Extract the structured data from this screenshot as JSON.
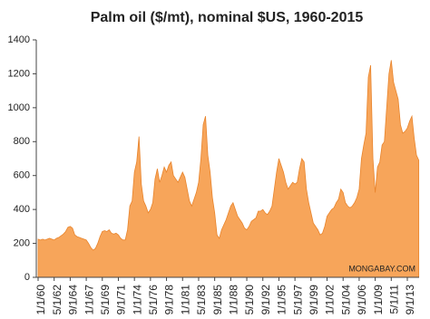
{
  "chart_data": {
    "type": "area",
    "title": "Palm oil ($/mt), nominal $US, 1960-2015",
    "annotation": "MONGABAY.COM",
    "color": "#f7a55a",
    "line_color": "#e8842c",
    "ylim": [
      0,
      1400
    ],
    "yticks": [
      0,
      200,
      400,
      600,
      800,
      1000,
      1200,
      1400
    ],
    "grid": false,
    "categories": [
      "1/1/60",
      null,
      null,
      null,
      null,
      null,
      null,
      "5/1/62",
      null,
      null,
      null,
      null,
      null,
      null,
      "9/1/64",
      null,
      null,
      null,
      null,
      null,
      null,
      "1/1/67",
      null,
      null,
      null,
      null,
      null,
      null,
      "5/1/69",
      null,
      null,
      null,
      null,
      null,
      null,
      "9/1/71",
      null,
      null,
      null,
      null,
      null,
      null,
      "1/1/74",
      null,
      null,
      null,
      null,
      null,
      null,
      "5/1/76",
      null,
      null,
      null,
      null,
      null,
      null,
      "9/1/78",
      null,
      null,
      null,
      null,
      null,
      null,
      "1/1/81",
      null,
      null,
      null,
      null,
      null,
      null,
      "5/1/83",
      null,
      null,
      null,
      null,
      null,
      null,
      "9/1/85",
      null,
      null,
      null,
      null,
      null,
      null,
      "1/1/88",
      null,
      null,
      null,
      null,
      null,
      null,
      "5/1/90",
      null,
      null,
      null,
      null,
      null,
      null,
      "9/1/92",
      null,
      null,
      null,
      null,
      null,
      null,
      "1/1/95",
      null,
      null,
      null,
      null,
      null,
      null,
      "5/1/97",
      null,
      null,
      null,
      null,
      null,
      null,
      "9/1/99",
      null,
      null,
      null,
      null,
      null,
      null,
      "1/1/02",
      null,
      null,
      null,
      null,
      null,
      null,
      "5/1/04",
      null,
      null,
      null,
      null,
      null,
      null,
      "9/1/06",
      null,
      null,
      null,
      null,
      null,
      null,
      "1/1/09",
      null,
      null,
      null,
      null,
      null,
      null,
      "5/1/11",
      null,
      null,
      null,
      null,
      null,
      null,
      "9/1/13",
      null,
      null,
      null,
      null,
      null
    ],
    "values": [
      225,
      220,
      225,
      220,
      225,
      230,
      225,
      220,
      230,
      235,
      245,
      255,
      270,
      295,
      300,
      290,
      250,
      240,
      235,
      230,
      225,
      220,
      200,
      175,
      160,
      170,
      200,
      240,
      270,
      275,
      270,
      280,
      260,
      255,
      260,
      250,
      230,
      220,
      220,
      280,
      420,
      450,
      620,
      680,
      830,
      550,
      450,
      420,
      380,
      400,
      440,
      580,
      640,
      560,
      600,
      650,
      620,
      660,
      680,
      600,
      580,
      560,
      590,
      620,
      590,
      520,
      450,
      420,
      460,
      500,
      560,
      700,
      900,
      950,
      720,
      620,
      470,
      380,
      250,
      230,
      280,
      310,
      340,
      380,
      420,
      440,
      400,
      360,
      340,
      320,
      290,
      280,
      300,
      330,
      340,
      350,
      390,
      390,
      400,
      380,
      370,
      390,
      420,
      520,
      620,
      700,
      660,
      620,
      560,
      520,
      540,
      560,
      550,
      560,
      640,
      700,
      680,
      520,
      440,
      380,
      320,
      300,
      280,
      250,
      260,
      300,
      360,
      380,
      400,
      410,
      440,
      460,
      520,
      500,
      440,
      420,
      410,
      420,
      440,
      470,
      520,
      700,
      780,
      850,
      1180,
      1250,
      700,
      500,
      650,
      680,
      780,
      800,
      1000,
      1200,
      1280,
      1150,
      1100,
      1050,
      900,
      850,
      860,
      880,
      920,
      950,
      820,
      720,
      690
    ]
  }
}
